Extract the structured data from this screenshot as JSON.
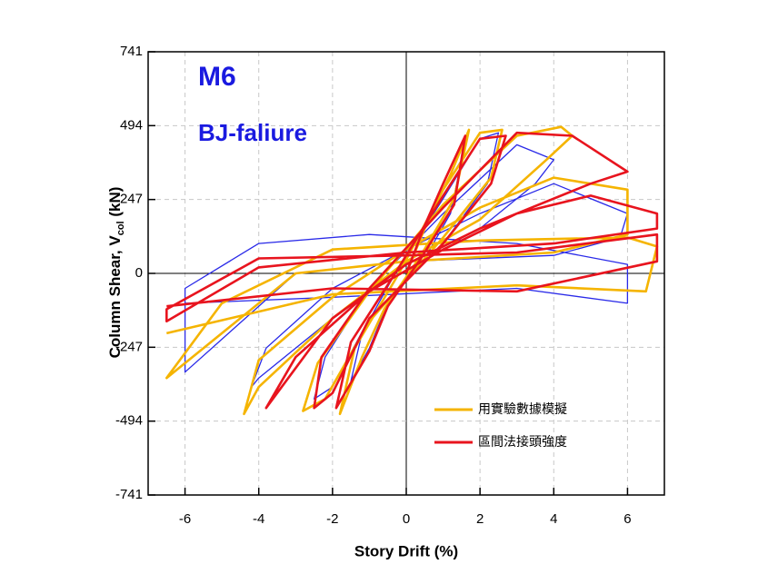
{
  "chart_data": {
    "type": "line",
    "title": "M6",
    "subtitle": "BJ-faliure",
    "xlabel": "Story Drift (%)",
    "ylabel": "Column Shear, V",
    "ylabel_subscript": "col",
    "ylabel_suffix": " (kN)",
    "xlim": [
      -7,
      7
    ],
    "xticks": [
      -6,
      -4,
      -2,
      0,
      2,
      4,
      6
    ],
    "ylim": [
      -741,
      741
    ],
    "yticks": [
      -741,
      -494,
      -247,
      0,
      247,
      494,
      741
    ],
    "grid": true,
    "legend": "lower right",
    "series": [
      {
        "color": "#2a2ae8",
        "x": [
          0,
          0.5,
          1,
          1.5,
          1.2,
          0.5,
          -0.5,
          -1,
          -1.5,
          -1.2,
          -0.3,
          1,
          2,
          2.5,
          2.2,
          1,
          -1,
          -2,
          -2.5,
          -2.2,
          -1,
          1,
          3,
          4,
          3.5,
          2,
          0,
          -2,
          -4,
          -4.2,
          -3.8,
          -2,
          0,
          2,
          4,
          6,
          5.8,
          4,
          0,
          -3,
          -6,
          -6,
          -4,
          -1,
          3,
          6,
          6,
          3,
          -2,
          -6
        ],
        "values": [
          0,
          150,
          280,
          380,
          200,
          50,
          -100,
          -250,
          -360,
          -200,
          0,
          250,
          450,
          470,
          300,
          100,
          -150,
          -380,
          -420,
          -280,
          -50,
          200,
          430,
          380,
          300,
          150,
          30,
          -150,
          -350,
          -380,
          -250,
          -50,
          80,
          200,
          300,
          200,
          120,
          60,
          40,
          0,
          -330,
          -50,
          100,
          130,
          100,
          30,
          -100,
          -50,
          -80,
          -100
        ]
      },
      {
        "name": "用實驗數據模擬",
        "color": "#f5b400",
        "x": [
          0,
          0.6,
          1.2,
          1.7,
          1.3,
          0.4,
          -0.6,
          -1.2,
          -1.8,
          -1.4,
          -0.2,
          1,
          2,
          2.6,
          2.3,
          1,
          -1,
          -2.2,
          -2.8,
          -2.4,
          -1,
          1,
          3,
          4.2,
          4.5,
          3.8,
          2,
          0,
          -2,
          -4,
          -4.4,
          -4,
          -2,
          0,
          2,
          4,
          6,
          6,
          4,
          0,
          -3,
          -6,
          -6.5,
          -5,
          -2,
          2,
          6,
          6.8,
          6.5,
          3,
          -2,
          -6.5
        ],
        "values": [
          0,
          180,
          330,
          480,
          250,
          60,
          -120,
          -280,
          -470,
          -250,
          0,
          280,
          470,
          480,
          320,
          120,
          -160,
          -420,
          -460,
          -300,
          -60,
          230,
          460,
          490,
          460,
          380,
          180,
          40,
          -150,
          -380,
          -470,
          -290,
          -80,
          80,
          220,
          320,
          280,
          130,
          70,
          40,
          0,
          -300,
          -350,
          -100,
          80,
          110,
          120,
          90,
          -60,
          -40,
          -70,
          -200
        ]
      },
      {
        "name": "區間法接頭強度",
        "color": "#e8141e",
        "x": [
          0,
          0.5,
          1,
          1.6,
          1.3,
          0.4,
          -0.5,
          -1,
          -1.9,
          -1.5,
          -0.3,
          1,
          2,
          2.7,
          2.3,
          1,
          -1,
          -2,
          -2.5,
          -2.3,
          -1,
          1,
          3,
          4.5,
          6,
          5,
          2,
          0,
          -2,
          -3.5,
          -3.8,
          -3,
          -1,
          1,
          3,
          5,
          6.8,
          6.8,
          4,
          0,
          -4,
          -6.5,
          -6.5,
          -4,
          0,
          3,
          6.8,
          6.8,
          3,
          -2,
          -6.5
        ],
        "values": [
          0,
          160,
          300,
          460,
          230,
          50,
          -110,
          -260,
          -450,
          -230,
          0,
          260,
          450,
          460,
          300,
          100,
          -150,
          -400,
          -450,
          -280,
          -50,
          220,
          470,
          460,
          340,
          300,
          150,
          30,
          -150,
          -400,
          -450,
          -280,
          -60,
          80,
          200,
          260,
          200,
          150,
          100,
          70,
          20,
          -160,
          -120,
          50,
          60,
          70,
          130,
          40,
          -60,
          -50,
          -110
        ]
      }
    ]
  }
}
